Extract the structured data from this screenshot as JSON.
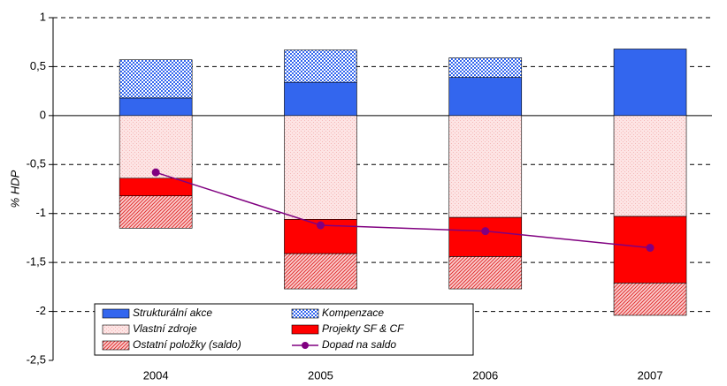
{
  "chart_data": {
    "type": "bar",
    "stacked": true,
    "y_label": "% HDP",
    "categories": [
      "2004",
      "2005",
      "2006",
      "2007"
    ],
    "ylim": [
      -2.5,
      1
    ],
    "yticks": [
      {
        "value": -2.5,
        "label": "-2,5"
      },
      -2,
      {
        "value": -1.5,
        "label": "-1,5"
      },
      -1,
      {
        "value": -0.5,
        "label": "-0,5"
      },
      0,
      {
        "value": 0.5,
        "label": "0,5"
      },
      1
    ],
    "grid": true,
    "series": [
      {
        "name": "Strukturální akce",
        "type": "bar",
        "color": "#3366ee",
        "pattern": "solid",
        "values": [
          0.18,
          0.34,
          0.39,
          0.68
        ]
      },
      {
        "name": "Kompenzace",
        "type": "bar",
        "color": "#3366ee",
        "pattern": "checker",
        "values": [
          0.39,
          0.33,
          0.2,
          0
        ]
      },
      {
        "name": "Vlastní zdroje",
        "type": "bar",
        "color": "#f4b8b8",
        "pattern": "dots",
        "values": [
          -0.64,
          -1.06,
          -1.04,
          -1.03
        ]
      },
      {
        "name": "Projekty SF & CF",
        "type": "bar",
        "color": "#ff0000",
        "pattern": "solid",
        "values": [
          -0.18,
          -0.35,
          -0.4,
          -0.68
        ]
      },
      {
        "name": "Ostatní položky (saldo)",
        "type": "bar",
        "color": "#e03030",
        "pattern": "hatch",
        "values": [
          -0.33,
          -0.36,
          -0.33,
          -0.33
        ]
      },
      {
        "name": "Dopad na saldo",
        "type": "line",
        "color": "#800080",
        "values": [
          -0.58,
          -1.12,
          -1.18,
          -1.35
        ]
      }
    ]
  }
}
